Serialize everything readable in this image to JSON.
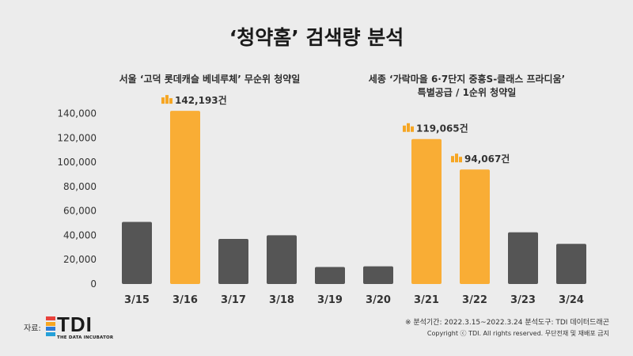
{
  "title": "‘청약홈’ 검색량 분석",
  "subtitle_left": "서울 ‘고덕 롯데캐슬 베네루체’ 무순위 청약일",
  "subtitle_right_line1": "세종 ‘가락마을 6·7단지 중흥S-클래스 프라디움’",
  "subtitle_right_line2": "특별공급 / 1순위 청약일",
  "source_label": "자료:",
  "logo": {
    "word": "TDI",
    "tagline": "THE DATA INCUBATOR",
    "colors": [
      "#e8413b",
      "#f6a623",
      "#2f7bd6",
      "#25a0d8"
    ]
  },
  "note_period": "※ 분석기간: 2022.3.15~2022.3.24  분석도구: TDI 데이터드래곤",
  "note_copyright": "Copyright ⓒ TDI. All rights reserved. 무단전재 및 재배포 금지",
  "chart_data": {
    "type": "bar",
    "categories": [
      "3/15",
      "3/16",
      "3/17",
      "3/18",
      "3/19",
      "3/20",
      "3/21",
      "3/22",
      "3/23",
      "3/24"
    ],
    "values": [
      51000,
      142193,
      37000,
      40000,
      14000,
      14500,
      119065,
      94067,
      42500,
      33000
    ],
    "highlight": [
      false,
      true,
      false,
      false,
      false,
      false,
      true,
      true,
      false,
      false
    ],
    "data_labels": {
      "1": "142,193건",
      "6": "119,065건",
      "7": "94,067건"
    },
    "yticks": [
      0,
      20000,
      40000,
      60000,
      80000,
      100000,
      120000,
      140000
    ],
    "ytick_labels": [
      "0",
      "20,000",
      "40,000",
      "60,000",
      "80,000",
      "100,000",
      "120,000",
      "140,000"
    ],
    "ylim": [
      0,
      150000
    ],
    "grid": false,
    "colors": {
      "normal": "#555555",
      "highlight": "#f9ad35",
      "label_icon": "#f6a623"
    }
  }
}
